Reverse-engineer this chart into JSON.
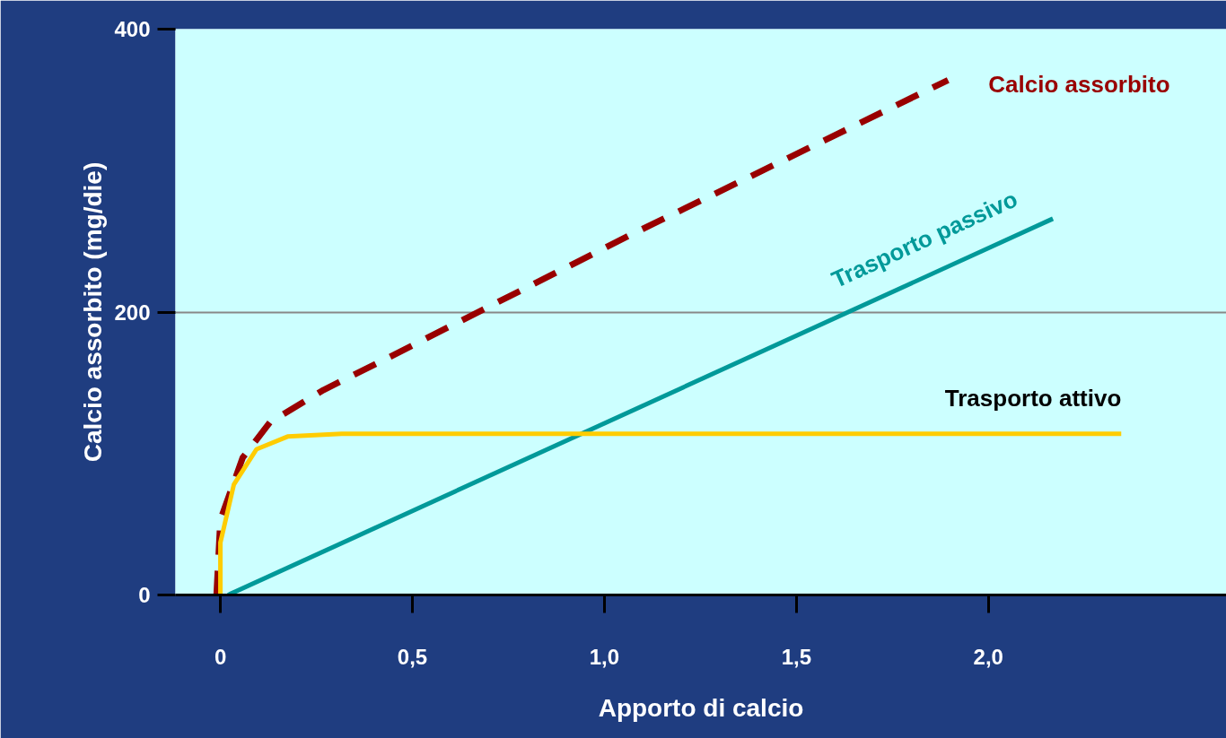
{
  "chart_data": {
    "type": "line",
    "xlabel": "Apporto di calcio",
    "ylabel": "Calcio assorbito (mg/die)",
    "xlim": [
      -0.117,
      2.62
    ],
    "ylim": [
      0,
      400
    ],
    "xticks": [
      {
        "value": 0,
        "label": "0"
      },
      {
        "value": 0.5,
        "label": "0,5"
      },
      {
        "value": 1,
        "label": "1,0"
      },
      {
        "value": 1.5,
        "label": "1,5"
      },
      {
        "value": 2,
        "label": "2,0"
      }
    ],
    "yticks": [
      0,
      200,
      400
    ],
    "grid": "y",
    "series": [
      {
        "name": "Calcio assorbito",
        "color": "#990000",
        "line_style": "dashed",
        "x": [
          -0.01,
          0.0,
          0.058,
          0.129,
          0.269,
          0.41,
          1.064,
          1.895
        ],
        "values": [
          0,
          53,
          97,
          122,
          145,
          164,
          254,
          364
        ]
      },
      {
        "name": "Trasporto passivo",
        "color": "#009999",
        "line_style": "solid",
        "x": [
          0.02,
          2.168
        ],
        "values": [
          0,
          266
        ]
      },
      {
        "name": "Trasporto attivo",
        "color": "#ffcc00",
        "line_style": "solid",
        "x": [
          0.0,
          0.0,
          0.035,
          0.094,
          0.175,
          0.316,
          2.346
        ],
        "values": [
          0,
          37,
          78,
          103,
          112,
          114,
          114
        ]
      }
    ]
  }
}
